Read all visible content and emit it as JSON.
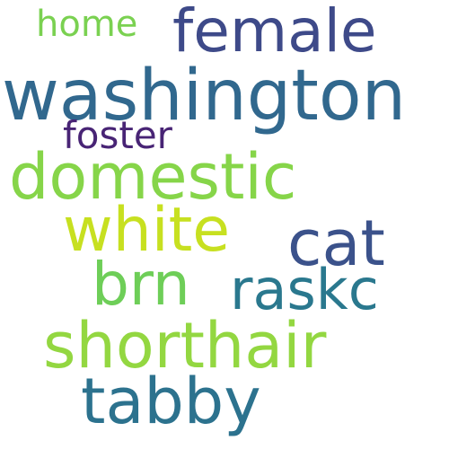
{
  "words": [
    {
      "key": "female",
      "text": "female",
      "color": "#3e4a89"
    },
    {
      "key": "home",
      "text": "home",
      "color": "#7ad151"
    },
    {
      "key": "washington",
      "text": "washington",
      "color": "#31688e"
    },
    {
      "key": "foster",
      "text": "foster",
      "color": "#482475"
    },
    {
      "key": "domestic",
      "text": "domestic",
      "color": "#86d549"
    },
    {
      "key": "white",
      "text": "white",
      "color": "#c7e020"
    },
    {
      "key": "cat",
      "text": "cat",
      "color": "#3b528b"
    },
    {
      "key": "brn",
      "text": "brn",
      "color": "#6ece58"
    },
    {
      "key": "raskc",
      "text": "raskc",
      "color": "#2a788e"
    },
    {
      "key": "shorthair",
      "text": "shorthair",
      "color": "#93d741"
    },
    {
      "key": "tabby",
      "text": "tabby",
      "color": "#2c728e"
    }
  ]
}
